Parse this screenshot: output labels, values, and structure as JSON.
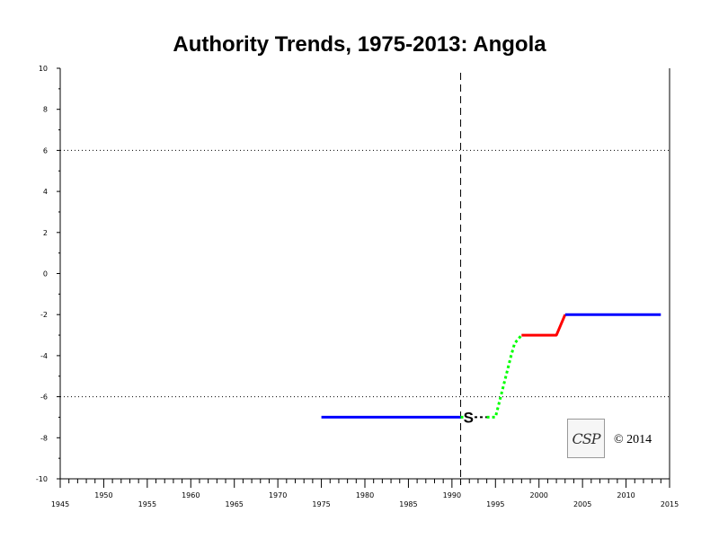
{
  "chart_data": {
    "type": "line",
    "title": "Authority Trends, 1975-2013: Angola",
    "xlim": [
      1945,
      2015
    ],
    "ylim": [
      -10,
      10
    ],
    "x_ticks": [
      1945,
      1950,
      1955,
      1960,
      1965,
      1970,
      1975,
      1980,
      1985,
      1990,
      1995,
      2000,
      2005,
      2010,
      2015
    ],
    "y_ticks": [
      10,
      8,
      6,
      4,
      2,
      0,
      -2,
      -4,
      -6,
      -8,
      -10
    ],
    "reference_lines_y": [
      6,
      -6
    ],
    "event_line_x": 1991,
    "event_marker": {
      "label": "S",
      "x": 1991.9,
      "y": -7
    },
    "segments": [
      {
        "style": "solid",
        "color": "#0000ff",
        "points": [
          [
            1975,
            -7
          ],
          [
            1991,
            -7
          ]
        ]
      },
      {
        "style": "dotted",
        "color": "#00ff00",
        "points": [
          [
            1991,
            -7
          ],
          [
            1991.4,
            -7
          ]
        ]
      },
      {
        "style": "dashed",
        "color": "#000000",
        "points": [
          [
            1992.6,
            -7
          ],
          [
            1994,
            -7
          ]
        ]
      },
      {
        "style": "dotted",
        "color": "#00ff00",
        "points": [
          [
            1994,
            -7
          ],
          [
            1995,
            -7
          ],
          [
            1995.6,
            -6
          ],
          [
            1996.2,
            -5
          ],
          [
            1996.8,
            -4
          ],
          [
            1997.2,
            -3.4
          ],
          [
            1998,
            -3
          ]
        ]
      },
      {
        "style": "solid",
        "color": "#ff0000",
        "points": [
          [
            1998,
            -3
          ],
          [
            2002,
            -3
          ],
          [
            2003,
            -2
          ]
        ]
      },
      {
        "style": "solid",
        "color": "#0000ff",
        "points": [
          [
            2003,
            -2
          ],
          [
            2014,
            -2
          ]
        ]
      }
    ]
  },
  "logo_text": "CSP",
  "copyright": "© 2014"
}
